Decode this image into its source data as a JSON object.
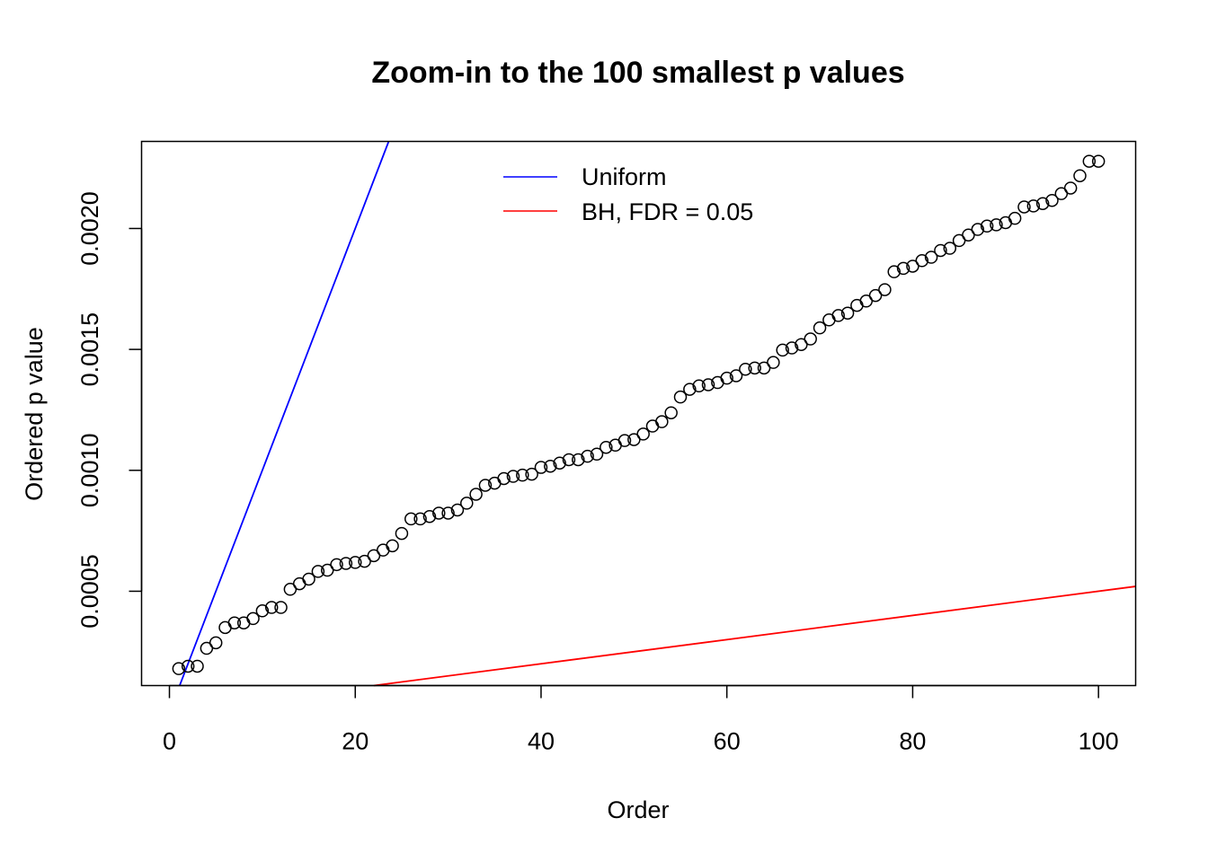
{
  "chart_data": {
    "type": "scatter",
    "title": "Zoom-in to the 100 smallest p values",
    "xlabel": "Order",
    "ylabel": "Ordered p value",
    "xlim": [
      -3.0,
      104.0
    ],
    "ylim": [
      0.00011,
      0.00236
    ],
    "xticks": [
      0,
      20,
      40,
      60,
      80,
      100
    ],
    "xtick_labels": [
      "0",
      "20",
      "40",
      "60",
      "80",
      "100"
    ],
    "yticks": [
      0.0005,
      0.001,
      0.0015,
      0.002
    ],
    "ytick_labels": [
      "0.0005",
      "0.0010",
      "0.0015",
      "0.0020"
    ],
    "grid": false,
    "legend_position": "top-center",
    "series": [
      {
        "kind": "points",
        "marker": "open-circle",
        "color": "#000000",
        "x": [
          1,
          2,
          3,
          4,
          5,
          6,
          7,
          8,
          9,
          10,
          11,
          12,
          13,
          14,
          15,
          16,
          17,
          18,
          19,
          20,
          21,
          22,
          23,
          24,
          25,
          26,
          27,
          28,
          29,
          30,
          31,
          32,
          33,
          34,
          35,
          36,
          37,
          38,
          39,
          40,
          41,
          42,
          43,
          44,
          45,
          46,
          47,
          48,
          49,
          50,
          51,
          52,
          53,
          54,
          55,
          56,
          57,
          58,
          59,
          60,
          61,
          62,
          63,
          64,
          65,
          66,
          67,
          68,
          69,
          70,
          71,
          72,
          73,
          74,
          75,
          76,
          77,
          78,
          79,
          80,
          81,
          82,
          83,
          84,
          85,
          86,
          87,
          88,
          89,
          90,
          91,
          92,
          93,
          94,
          95,
          96,
          97,
          98,
          99,
          100
        ],
        "y": [
          0.00018,
          0.00019,
          0.00019,
          0.000264,
          0.000287,
          0.00035,
          0.000369,
          0.000369,
          0.000387,
          0.000419,
          0.000433,
          0.000433,
          0.000508,
          0.000531,
          0.00055,
          0.000582,
          0.000587,
          0.00061,
          0.000615,
          0.000619,
          0.000624,
          0.000647,
          0.00067,
          0.000688,
          0.000739,
          0.000799,
          0.000799,
          0.000809,
          0.000823,
          0.000823,
          0.000836,
          0.000864,
          0.000901,
          0.000938,
          0.000947,
          0.000966,
          0.000975,
          0.00098,
          0.000984,
          0.001012,
          0.001017,
          0.00103,
          0.001044,
          0.001044,
          0.001058,
          0.001067,
          0.001095,
          0.001104,
          0.001123,
          0.001127,
          0.00115,
          0.001183,
          0.001201,
          0.001238,
          0.001303,
          0.001335,
          0.001349,
          0.001354,
          0.001363,
          0.001381,
          0.001391,
          0.001418,
          0.001423,
          0.001423,
          0.001446,
          0.001497,
          0.001506,
          0.00152,
          0.001543,
          0.001589,
          0.001622,
          0.00164,
          0.00165,
          0.001682,
          0.0017,
          0.001723,
          0.001747,
          0.001821,
          0.001835,
          0.001844,
          0.001867,
          0.001881,
          0.001909,
          0.001918,
          0.00195,
          0.001973,
          0.001996,
          0.00201,
          0.002015,
          0.002024,
          0.002042,
          0.002089,
          0.002093,
          0.002103,
          0.002116,
          0.002144,
          0.002167,
          0.002218,
          0.002278,
          0.002278
        ]
      },
      {
        "kind": "line",
        "name": "Uniform",
        "color": "#0000ff",
        "intercept": 0,
        "slope": 0.0001
      },
      {
        "kind": "line",
        "name": "BH, FDR = 0.05",
        "color": "#ff0000",
        "intercept": 0,
        "slope": 5e-06
      }
    ]
  }
}
